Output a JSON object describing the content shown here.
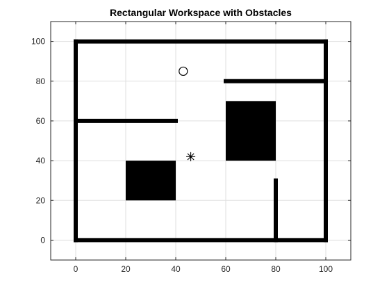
{
  "chart_data": {
    "type": "scatter",
    "title": "Rectangular Workspace with Obstacles",
    "xlabel": "",
    "ylabel": "",
    "xlim": [
      -10,
      110
    ],
    "ylim": [
      -10,
      110
    ],
    "xticks": [
      0,
      20,
      40,
      60,
      80,
      100
    ],
    "yticks": [
      0,
      20,
      40,
      60,
      80,
      100
    ],
    "grid": true,
    "colors": {
      "obstacle": "#000000",
      "grid": "#dfdfdf",
      "axis": "#262626"
    },
    "walls": [
      {
        "x": [
          0,
          100
        ],
        "y": [
          100,
          100
        ]
      },
      {
        "x": [
          0,
          100
        ],
        "y": [
          0,
          0
        ]
      },
      {
        "x": [
          0,
          0
        ],
        "y": [
          0,
          100
        ]
      },
      {
        "x": [
          100,
          100
        ],
        "y": [
          0,
          100
        ]
      },
      {
        "x": [
          0,
          40
        ],
        "y": [
          60,
          60
        ]
      },
      {
        "x": [
          60,
          100
        ],
        "y": [
          80,
          80
        ]
      },
      {
        "x": [
          80,
          80
        ],
        "y": [
          0,
          30
        ]
      }
    ],
    "blocks": [
      {
        "x": [
          20,
          40
        ],
        "y": [
          20,
          40
        ]
      },
      {
        "x": [
          60,
          80
        ],
        "y": [
          40,
          70
        ]
      }
    ],
    "markers": [
      {
        "symbol": "circle",
        "x": 43,
        "y": 85
      },
      {
        "symbol": "asterisk",
        "x": 46,
        "y": 42
      }
    ]
  }
}
